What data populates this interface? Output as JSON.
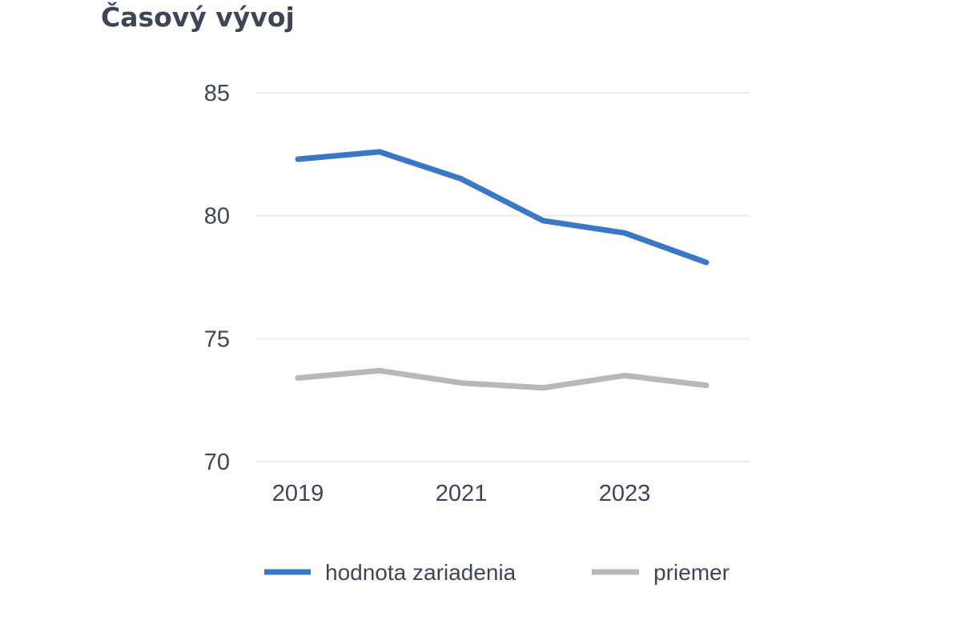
{
  "chart_data": {
    "type": "line",
    "title": "Časový vývoj",
    "xlabel": "",
    "ylabel": "",
    "x": [
      2019,
      2020,
      2021,
      2022,
      2023,
      2024
    ],
    "x_tick_labels": [
      "2019",
      "2021",
      "2023"
    ],
    "x_tick_values": [
      2019,
      2021,
      2023
    ],
    "ylim": [
      70,
      85
    ],
    "y_ticks": [
      85,
      80,
      75,
      70
    ],
    "y_tick_labels": [
      "85",
      "80",
      "75",
      "70"
    ],
    "grid": true,
    "legend_position": "bottom",
    "series": [
      {
        "name": "hodnota zariadenia",
        "color": "#3a78c6",
        "values": [
          82.3,
          82.6,
          81.5,
          79.8,
          79.3,
          78.1
        ]
      },
      {
        "name": "priemer",
        "color": "#b8b8b8",
        "values": [
          73.4,
          73.7,
          73.2,
          73.0,
          73.5,
          73.1
        ]
      }
    ]
  }
}
